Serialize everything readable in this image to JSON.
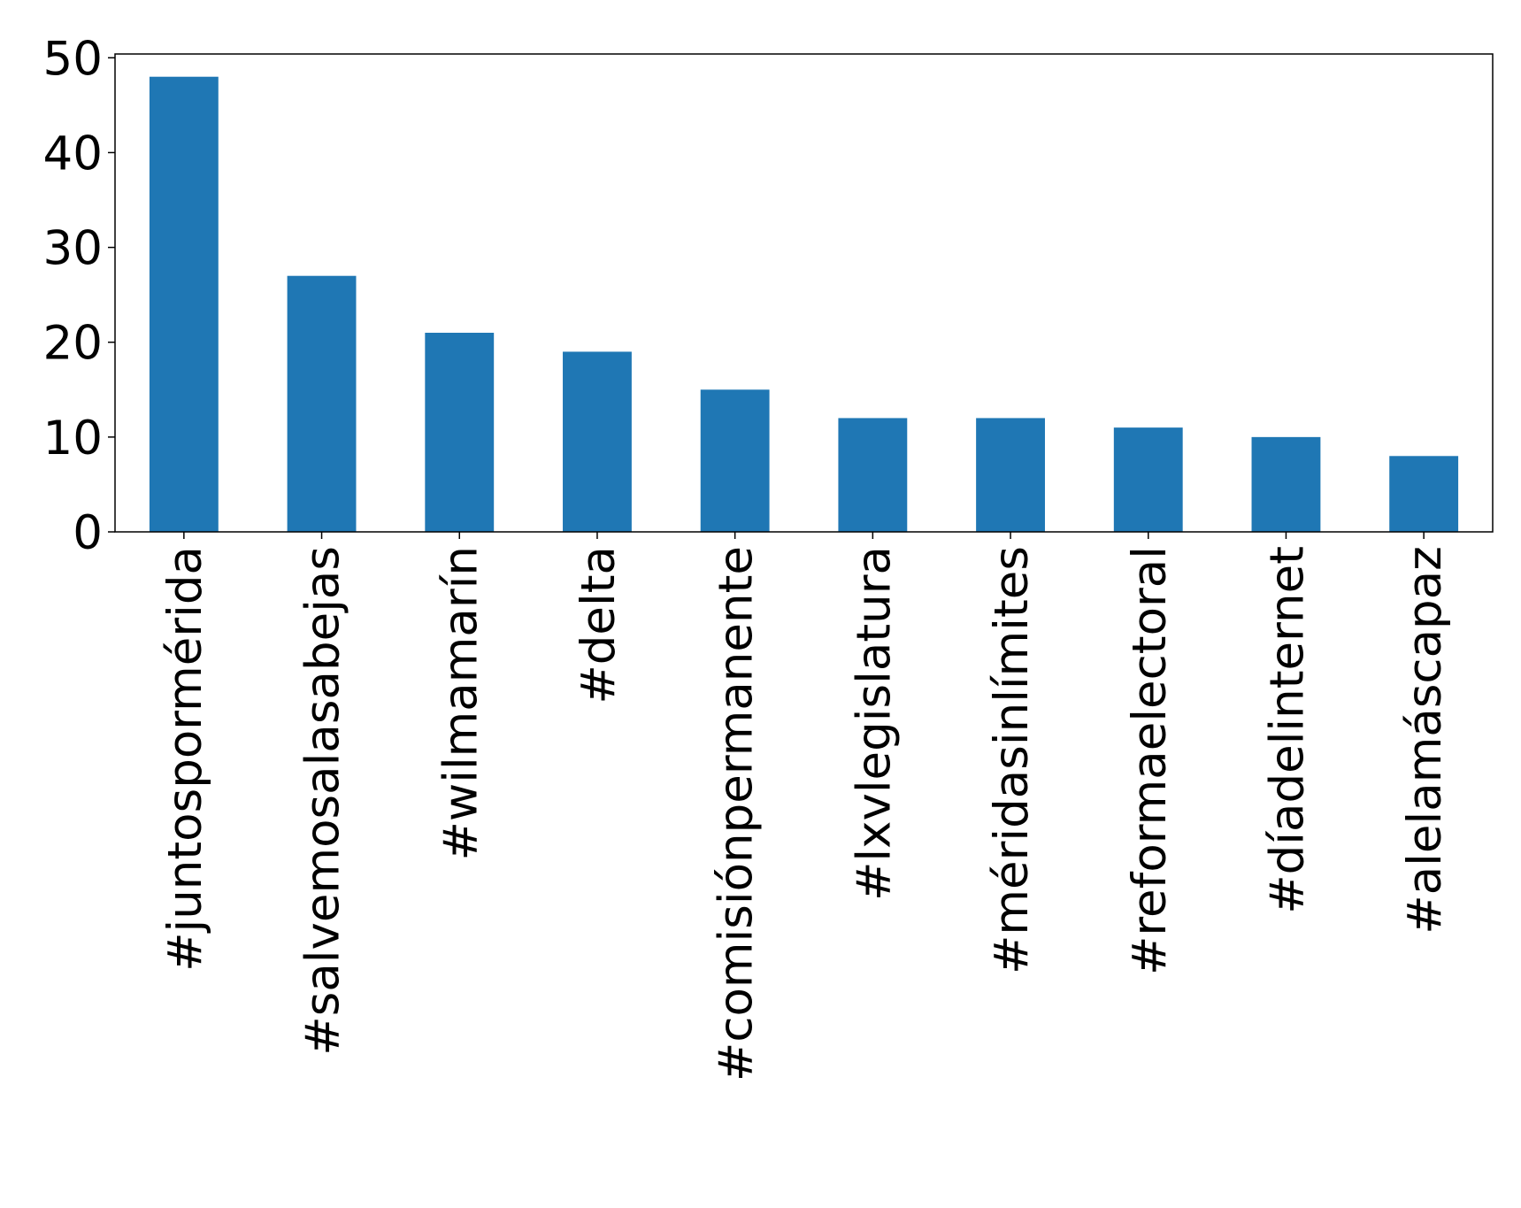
{
  "chart_data": {
    "type": "bar",
    "categories": [
      "#juntospormérida",
      "#salvemosalasabejas",
      "#wilmamarín",
      "#delta",
      "#comisiónpermanente",
      "#lxvlegislatura",
      "#méridasinlímites",
      "#reformaelectoral",
      "#díadelinternet",
      "#alelamáscapaz"
    ],
    "values": [
      48,
      27,
      21,
      19,
      15,
      12,
      12,
      11,
      10,
      8
    ],
    "color": "#1f77b4",
    "ylim": [
      0,
      50.4
    ],
    "yticks": [
      0,
      10,
      20,
      30,
      40,
      50
    ],
    "grid": false
  }
}
